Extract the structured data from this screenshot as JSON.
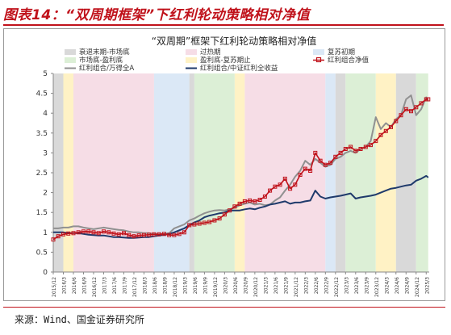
{
  "figure_title": "图表14：“双周期框架”下红利轮动策略相对净值",
  "source": "来源：Wind、国金证券研究所",
  "colors": {
    "red": "#c0121b",
    "gray": "#909090",
    "navy": "#1f3a6b",
    "bg_declining_end": "#d9d9d9",
    "bg_overheat": "#f6dde6",
    "bg_recovery_start": "#dbe8f6",
    "bg_market_bottom": "#dcefd6",
    "bg_profit_peak": "#fff2c5"
  },
  "chart_data": {
    "type": "line",
    "title": "“双周期”框架下红利轮动策略相对净值",
    "ylim": [
      0,
      5
    ],
    "yticks": [
      0,
      0.5,
      1,
      1.5,
      2,
      2.5,
      3,
      3.5,
      4,
      4.5,
      5
    ],
    "ytick_labels": [
      "0",
      "0.5",
      "1",
      "1.5",
      "2",
      "2.5",
      "3",
      "3.5",
      "4",
      "4.5",
      "5"
    ],
    "grid": false,
    "legend_position": "top",
    "xtick_labels": [
      "2015/12",
      "2016/3",
      "2016/6",
      "2016/9",
      "2016/12",
      "2017/3",
      "2017/6",
      "2017/9",
      "2017/12",
      "2018/3",
      "2018/6",
      "2018/9",
      "2018/12",
      "2019/3",
      "2019/6",
      "2019/9",
      "2019/12",
      "2020/3",
      "2020/6",
      "2020/9",
      "2020/12",
      "2021/3",
      "2021/6",
      "2021/9",
      "2021/12",
      "2022/3",
      "2022/6",
      "2022/9",
      "2022/12",
      "2023/3",
      "2023/6",
      "2023/9",
      "2023/12",
      "2024/3",
      "2024/6",
      "2024/9",
      "2024/12",
      "2025/3"
    ],
    "legend": [
      {
        "label": "衰退末期-市场底",
        "kind": "band",
        "color": "#d9d9d9"
      },
      {
        "label": "过热期",
        "kind": "band",
        "color": "#f6dde6"
      },
      {
        "label": "复苏初期",
        "kind": "band",
        "color": "#dbe8f6"
      },
      {
        "label": "市场底-盈利底",
        "kind": "band",
        "color": "#dcefd6"
      },
      {
        "label": "盈利底-复苏期止",
        "kind": "band",
        "color": "#fff2c5"
      },
      {
        "label": "红利组合净值",
        "kind": "line-marker",
        "color": "#c0121b"
      },
      {
        "label": "红利组合/万得全A",
        "kind": "line",
        "color": "#909090"
      },
      {
        "label": "红利组合/中证红利全收益",
        "kind": "line",
        "color": "#1f3a6b"
      }
    ],
    "regimes": [
      {
        "from": 0,
        "to": 1,
        "type": "bg_declining_end"
      },
      {
        "from": 1,
        "to": 2,
        "type": "bg_profit_peak"
      },
      {
        "from": 2,
        "to": 10,
        "type": "bg_overheat"
      },
      {
        "from": 10,
        "to": 13.5,
        "type": "bg_recovery_start"
      },
      {
        "from": 13.5,
        "to": 14,
        "type": "bg_declining_end"
      },
      {
        "from": 14,
        "to": 18,
        "type": "bg_market_bottom"
      },
      {
        "from": 18,
        "to": 19,
        "type": "bg_profit_peak"
      },
      {
        "from": 19,
        "to": 27,
        "type": "bg_overheat"
      },
      {
        "from": 27,
        "to": 28,
        "type": "bg_recovery_start"
      },
      {
        "from": 28,
        "to": 29,
        "type": "bg_declining_end"
      },
      {
        "from": 29,
        "to": 32,
        "type": "bg_market_bottom"
      },
      {
        "from": 32,
        "to": 34,
        "type": "bg_profit_peak"
      },
      {
        "from": 34,
        "to": 36,
        "type": "bg_declining_end"
      },
      {
        "from": 36,
        "to": 37.2,
        "type": "bg_market_bottom"
      }
    ],
    "series": [
      {
        "name": "红利组合净值",
        "color": "#c0121b",
        "x": [
          0,
          0.5,
          1,
          1.5,
          2,
          2.5,
          3,
          3.5,
          4,
          4.5,
          5,
          5.5,
          6,
          6.5,
          7,
          7.5,
          8,
          8.5,
          9,
          9.5,
          10,
          10.5,
          11,
          11.5,
          12,
          12.5,
          13,
          13.5,
          14,
          14.5,
          15,
          15.5,
          16,
          16.5,
          17,
          17.5,
          18,
          18.5,
          19,
          19.5,
          20,
          20.5,
          21,
          21.5,
          22,
          22.5,
          23,
          23.5,
          24,
          24.5,
          25,
          25.5,
          26,
          26.5,
          27,
          27.5,
          28,
          28.5,
          29,
          29.5,
          30,
          30.5,
          31,
          31.5,
          32,
          32.5,
          33,
          33.5,
          34,
          34.5,
          35,
          35.5,
          36,
          36.5,
          37,
          37.2
        ],
        "values": [
          0.82,
          0.9,
          0.95,
          0.97,
          0.98,
          1.0,
          1.02,
          1.02,
          1.0,
          0.98,
          1.02,
          1.0,
          0.97,
          0.95,
          0.98,
          0.93,
          0.9,
          0.92,
          0.93,
          0.94,
          0.95,
          0.95,
          0.96,
          0.93,
          0.93,
          0.96,
          1.0,
          1.18,
          1.2,
          1.22,
          1.24,
          1.26,
          1.3,
          1.35,
          1.45,
          1.55,
          1.65,
          1.72,
          1.78,
          1.8,
          1.78,
          1.82,
          1.9,
          2.05,
          2.15,
          2.2,
          2.35,
          2.1,
          2.2,
          2.45,
          2.6,
          2.55,
          3.0,
          2.8,
          2.7,
          2.75,
          2.9,
          3.0,
          3.1,
          3.15,
          3.05,
          3.1,
          3.15,
          3.2,
          3.3,
          3.45,
          3.55,
          3.65,
          3.8,
          3.95,
          4.1,
          4.05,
          4.15,
          4.25,
          4.35,
          4.35
        ]
      },
      {
        "name": "红利组合/万得全A",
        "color": "#909090",
        "x": [
          0,
          0.5,
          1,
          1.5,
          2,
          2.5,
          3,
          3.5,
          4,
          4.5,
          5,
          5.5,
          6,
          6.5,
          7,
          7.5,
          8,
          8.5,
          9,
          9.5,
          10,
          10.5,
          11,
          11.5,
          12,
          12.5,
          13,
          13.5,
          14,
          14.5,
          15,
          15.5,
          16,
          16.5,
          17,
          17.5,
          18,
          18.5,
          19,
          19.5,
          20,
          20.5,
          21,
          21.5,
          22,
          22.5,
          23,
          23.5,
          24,
          24.5,
          25,
          25.5,
          26,
          26.5,
          27,
          27.5,
          28,
          28.5,
          29,
          29.5,
          30,
          30.5,
          31,
          31.5,
          32,
          32.5,
          33,
          33.5,
          34,
          34.5,
          35,
          35.5,
          36,
          36.5,
          37,
          37.2
        ],
        "values": [
          1.1,
          1.1,
          1.12,
          1.12,
          1.15,
          1.15,
          1.12,
          1.1,
          1.08,
          1.1,
          1.12,
          1.1,
          1.08,
          1.06,
          1.05,
          1.02,
          1.0,
          1.0,
          0.98,
          0.98,
          0.96,
          0.95,
          0.96,
          0.98,
          1.1,
          1.15,
          1.2,
          1.3,
          1.35,
          1.42,
          1.48,
          1.52,
          1.55,
          1.56,
          1.55,
          1.58,
          1.62,
          1.68,
          1.72,
          1.75,
          1.7,
          1.72,
          1.68,
          1.7,
          1.8,
          1.88,
          2.05,
          2.2,
          2.4,
          2.55,
          2.8,
          2.7,
          2.85,
          2.75,
          2.65,
          2.7,
          2.85,
          2.9,
          3.0,
          3.05,
          3.0,
          3.1,
          3.15,
          3.3,
          3.9,
          3.6,
          3.75,
          3.65,
          3.85,
          3.95,
          4.35,
          4.45,
          3.95,
          4.1,
          4.4,
          4.3
        ]
      },
      {
        "name": "红利组合/中证红利全收益",
        "color": "#1f3a6b",
        "x": [
          0,
          0.5,
          1,
          1.5,
          2,
          2.5,
          3,
          3.5,
          4,
          4.5,
          5,
          5.5,
          6,
          6.5,
          7,
          7.5,
          8,
          8.5,
          9,
          9.5,
          10,
          10.5,
          11,
          11.5,
          12,
          12.5,
          13,
          13.5,
          14,
          14.5,
          15,
          15.5,
          16,
          16.5,
          17,
          17.5,
          18,
          18.5,
          19,
          19.5,
          20,
          20.5,
          21,
          21.5,
          22,
          22.5,
          23,
          23.5,
          24,
          24.5,
          25,
          25.5,
          26,
          26.5,
          27,
          27.5,
          28,
          28.5,
          29,
          29.5,
          30,
          30.5,
          31,
          31.5,
          32,
          32.5,
          33,
          33.5,
          34,
          34.5,
          35,
          35.5,
          36,
          36.5,
          37,
          37.2
        ],
        "values": [
          1.0,
          1.0,
          1.0,
          0.98,
          0.98,
          0.98,
          0.96,
          0.94,
          0.93,
          0.92,
          0.92,
          0.9,
          0.88,
          0.88,
          0.87,
          0.86,
          0.86,
          0.87,
          0.88,
          0.88,
          0.9,
          0.92,
          0.94,
          0.96,
          1.0,
          1.05,
          1.1,
          1.18,
          1.25,
          1.3,
          1.38,
          1.42,
          1.45,
          1.48,
          1.5,
          1.55,
          1.55,
          1.55,
          1.58,
          1.6,
          1.58,
          1.62,
          1.65,
          1.7,
          1.72,
          1.75,
          1.78,
          1.72,
          1.75,
          1.75,
          1.78,
          1.8,
          2.05,
          1.9,
          1.85,
          1.88,
          1.9,
          1.92,
          1.95,
          1.98,
          1.85,
          1.88,
          1.9,
          1.92,
          1.95,
          2.0,
          2.05,
          2.1,
          2.12,
          2.15,
          2.18,
          2.2,
          2.3,
          2.35,
          2.42,
          2.38
        ]
      }
    ]
  }
}
